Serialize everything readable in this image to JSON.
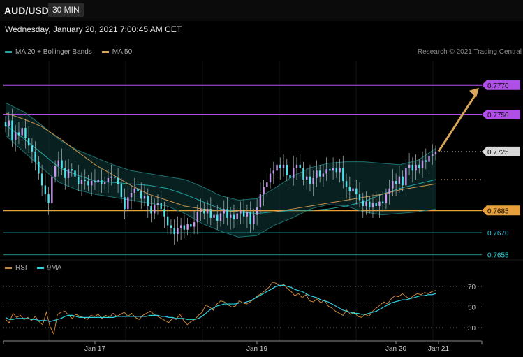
{
  "header": {
    "symbol": "AUD/USD",
    "interval": "30 MIN"
  },
  "datetime": "Wednesday, January 20, 2021 7:00:45 AM CET",
  "legend": {
    "items": [
      {
        "label": "MA 20 + Bollinger Bands",
        "color": "#1fa3a3"
      },
      {
        "label": "MA 50",
        "color": "#d9a55b"
      }
    ]
  },
  "credit": "Research © 2021 Trading Central",
  "rsi_legend": {
    "items": [
      {
        "label": "RSI",
        "color": "#c9873a"
      },
      {
        "label": "9MA",
        "color": "#2fd0e0"
      }
    ]
  },
  "chart_data": [
    {
      "type": "candlestick",
      "title": "AUD/USD",
      "ylim": [
        0.7652,
        0.7786
      ],
      "x_ticks": [
        "Jan 17",
        "Jan 19",
        "Jan 20",
        "Jan 21"
      ],
      "levels": [
        {
          "value": 0.777,
          "label": "0.7770",
          "color": "#b04fe8",
          "style": "solid-box"
        },
        {
          "value": 0.775,
          "label": "0.7750",
          "color": "#b04fe8",
          "style": "solid-box"
        },
        {
          "value": 0.7725,
          "label": "0.7725",
          "color": "#cccccc",
          "style": "current-box"
        },
        {
          "value": 0.7685,
          "label": "0.7685",
          "color": "#e8a03a",
          "style": "solid-box"
        },
        {
          "value": 0.767,
          "label": "0.7670",
          "color": "#1f8a8a",
          "style": "text"
        },
        {
          "value": 0.7655,
          "label": "0.7655",
          "color": "#1f8a8a",
          "style": "text"
        }
      ],
      "series": [
        {
          "name": "Price (close)",
          "values": [
            0.7742,
            0.7746,
            0.7733,
            0.7738,
            0.7736,
            0.7741,
            0.7734,
            0.7729,
            0.7725,
            0.7718,
            0.771,
            0.7702,
            0.7696,
            0.769,
            0.7708,
            0.7715,
            0.7719,
            0.7714,
            0.7707,
            0.7713,
            0.7712,
            0.7708,
            0.7703,
            0.7706,
            0.7705,
            0.7702,
            0.7705,
            0.7704,
            0.7706,
            0.7703,
            0.7704,
            0.7707,
            0.7708,
            0.7707,
            0.7703,
            0.7694,
            0.7686,
            0.7694,
            0.7697,
            0.77,
            0.7698,
            0.7693,
            0.7695,
            0.7688,
            0.7683,
            0.7689,
            0.769,
            0.7686,
            0.7681,
            0.7675,
            0.7673,
            0.7669,
            0.7673,
            0.7675,
            0.7672,
            0.7676,
            0.7674,
            0.7677,
            0.7684,
            0.7686,
            0.7683,
            0.7686,
            0.768,
            0.7682,
            0.7678,
            0.7683,
            0.7686,
            0.768,
            0.7682,
            0.7679,
            0.7683,
            0.7685,
            0.7681,
            0.7684,
            0.7676,
            0.7682,
            0.7687,
            0.7696,
            0.7701,
            0.7704,
            0.771,
            0.7712,
            0.7716,
            0.7714,
            0.7716,
            0.7709,
            0.7707,
            0.7714,
            0.7716,
            0.7714,
            0.7706,
            0.7708,
            0.7703,
            0.7707,
            0.7712,
            0.7708,
            0.771,
            0.7713,
            0.7712,
            0.7714,
            0.7711,
            0.7714,
            0.7705,
            0.7701,
            0.7698,
            0.77,
            0.7696,
            0.7692,
            0.7688,
            0.7691,
            0.7687,
            0.769,
            0.7688,
            0.7691,
            0.769,
            0.7696,
            0.77,
            0.7705,
            0.7703,
            0.7708,
            0.7702,
            0.7714,
            0.7716,
            0.7712,
            0.7716,
            0.7714,
            0.7719,
            0.7718,
            0.7722,
            0.7723,
            0.7725
          ]
        },
        {
          "name": "MA 20",
          "values": [
            0.7743,
            0.7734,
            0.7724,
            0.7714,
            0.7709,
            0.7705,
            0.7704,
            0.7703,
            0.7702,
            0.77,
            0.7696,
            0.7691,
            0.7686,
            0.7684,
            0.7683,
            0.7684,
            0.7685,
            0.7685,
            0.7686,
            0.7688,
            0.7691,
            0.7696,
            0.77,
            0.7703,
            0.7706
          ]
        },
        {
          "name": "MA 50",
          "values": [
            0.7751,
            0.7747,
            0.7742,
            0.7734,
            0.7725,
            0.7716,
            0.7709,
            0.7702,
            0.7696,
            0.7692,
            0.7688,
            0.7686,
            0.7685,
            0.7684,
            0.7684,
            0.7684,
            0.7686,
            0.7688,
            0.769,
            0.7692,
            0.7694,
            0.7696,
            0.7699,
            0.7701,
            0.7703
          ]
        },
        {
          "name": "Upper Bollinger Band",
          "values": [
            0.7758,
            0.7752,
            0.7743,
            0.7733,
            0.7726,
            0.7721,
            0.7716,
            0.7712,
            0.771,
            0.7708,
            0.7706,
            0.7701,
            0.7695,
            0.7692,
            0.7693,
            0.77,
            0.7708,
            0.7714,
            0.7717,
            0.7718,
            0.7718,
            0.7717,
            0.7716,
            0.7719,
            0.7727
          ]
        },
        {
          "name": "Lower Bollinger Band",
          "values": [
            0.7736,
            0.7725,
            0.7714,
            0.7704,
            0.7699,
            0.7696,
            0.7694,
            0.7692,
            0.769,
            0.7688,
            0.7683,
            0.7676,
            0.7671,
            0.7667,
            0.7668,
            0.7675,
            0.768,
            0.7686,
            0.7689,
            0.7688,
            0.7684,
            0.7682,
            0.7683,
            0.7684,
            0.7686
          ]
        }
      ],
      "projection": {
        "from": 0.7725,
        "to": 0.777
      }
    },
    {
      "type": "line",
      "title": "RSI",
      "ylim": [
        20,
        78
      ],
      "y_ticks": [
        70,
        50,
        30
      ],
      "x_ticks": [
        "Jan 17",
        "Jan 19",
        "Jan 20",
        "Jan 21"
      ],
      "series": [
        {
          "name": "RSI",
          "values": [
            38,
            35,
            44,
            40,
            42,
            38,
            40,
            37,
            41,
            36,
            33,
            45,
            31,
            24,
            43,
            45,
            46,
            42,
            39,
            43,
            41,
            40,
            38,
            42,
            41,
            43,
            39,
            42,
            40,
            44,
            41,
            43,
            45,
            41,
            44,
            40,
            38,
            42,
            44,
            46,
            43,
            41,
            39,
            37,
            35,
            39,
            38,
            43,
            37,
            33,
            36,
            38,
            42,
            45,
            52,
            50,
            47,
            53,
            56,
            55,
            52,
            50,
            51,
            56,
            54,
            53,
            55,
            58,
            61,
            63,
            66,
            69,
            74,
            73,
            70,
            72,
            68,
            65,
            61,
            63,
            59,
            62,
            56,
            55,
            58,
            54,
            57,
            51,
            49,
            46,
            44,
            42,
            47,
            43,
            45,
            41,
            40,
            43,
            41,
            46,
            49,
            52,
            55,
            53,
            58,
            61,
            60,
            63,
            60,
            58,
            61,
            63,
            62,
            64,
            63,
            65,
            66
          ]
        },
        {
          "name": "9MA",
          "values": [
            40,
            38,
            38,
            39,
            39,
            39,
            39,
            38,
            38,
            37,
            37,
            37,
            36,
            37,
            38,
            39,
            41,
            42,
            42,
            41,
            40,
            40,
            40,
            40,
            40,
            40,
            40,
            40,
            40,
            40,
            41,
            41,
            41,
            41,
            41,
            41,
            41,
            41,
            41,
            42,
            42,
            42,
            41,
            41,
            40,
            40,
            39,
            39,
            39,
            38,
            38,
            38,
            39,
            41,
            44,
            47,
            49,
            51,
            52,
            53,
            53,
            53,
            53,
            54,
            54,
            55,
            56,
            58,
            60,
            62,
            64,
            66,
            68,
            70,
            71,
            71,
            70,
            69,
            67,
            66,
            65,
            63,
            61,
            60,
            59,
            57,
            56,
            55,
            53,
            51,
            49,
            47,
            46,
            45,
            44,
            44,
            43,
            43,
            44,
            45,
            46,
            48,
            50,
            52,
            54,
            55,
            56,
            57,
            57,
            58,
            59,
            60,
            61,
            61,
            62,
            62,
            63
          ]
        }
      ]
    }
  ]
}
